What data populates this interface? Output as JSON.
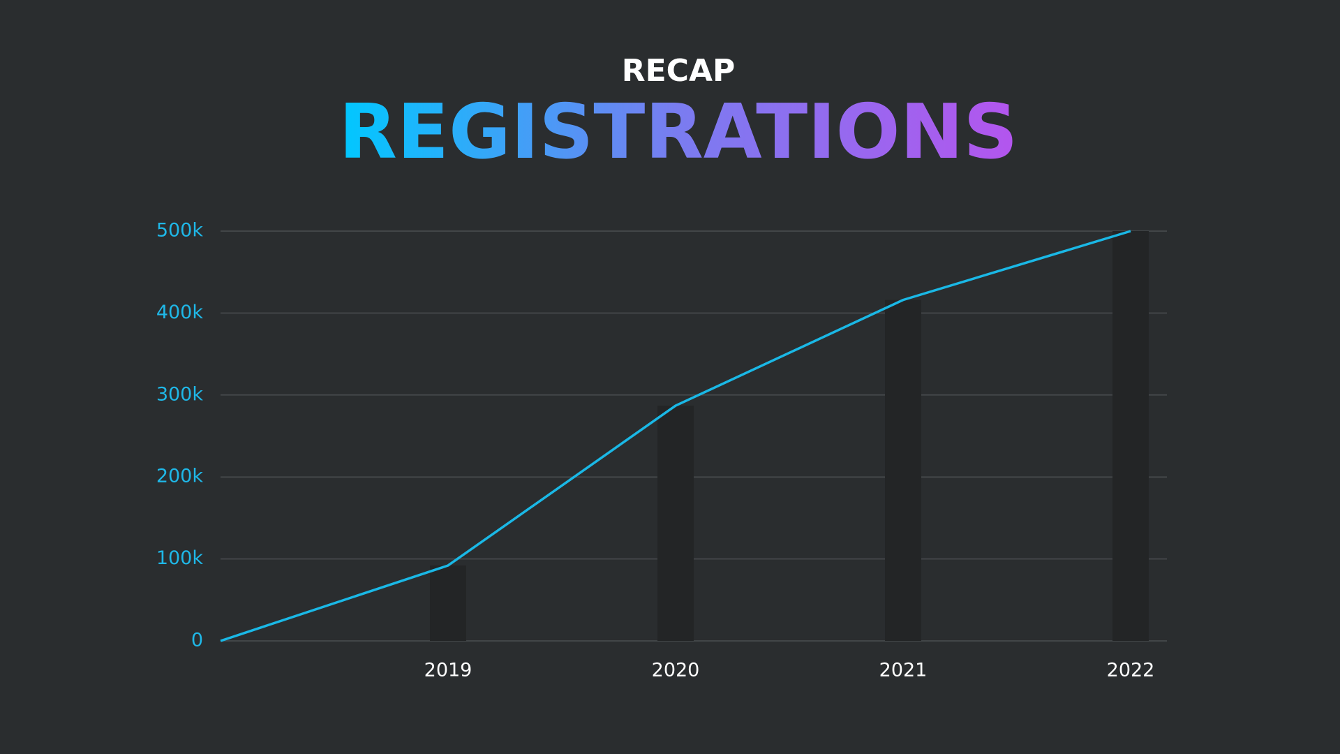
{
  "chart_data": {
    "type": "line",
    "supertitle": "RECAP",
    "title": "REGISTRATIONS",
    "categories": [
      null,
      "2019",
      "2020",
      "2021",
      "2022"
    ],
    "values": [
      0,
      92000,
      287000,
      416000,
      500000
    ],
    "color": "#1ab8e6",
    "ylim": [
      0,
      500000
    ],
    "yticks": [
      0,
      {
        "value": 100000,
        "label": "100k"
      },
      {
        "value": 200000,
        "label": "200k"
      },
      {
        "value": 300000,
        "label": "300k"
      },
      {
        "value": 400000,
        "label": "400k"
      },
      {
        "value": 500000,
        "label": "500k"
      }
    ],
    "grid": true
  }
}
